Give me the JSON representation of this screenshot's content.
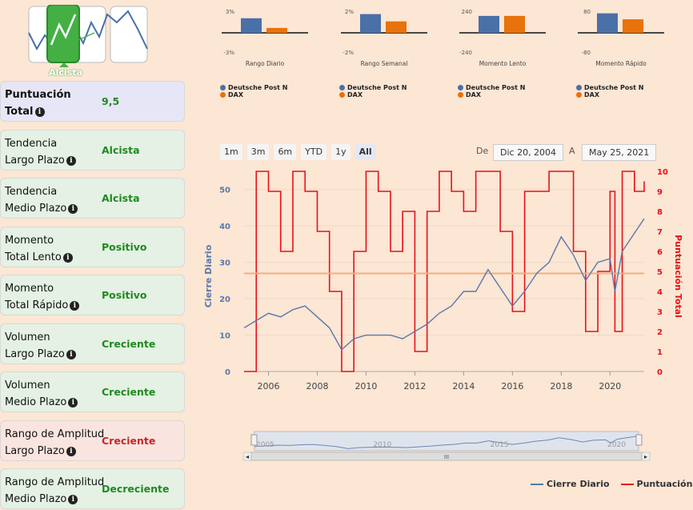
{
  "logo": {
    "label": "Alcista"
  },
  "cards": [
    {
      "label1": "Puntuación",
      "label2": "Total",
      "value": "9,5",
      "tone": "b"
    },
    {
      "label1": "Tendencia",
      "label2": "Largo Plazo",
      "value": "Alcista",
      "tone": "g"
    },
    {
      "label1": "Tendencia",
      "label2": "Medio Plazo",
      "value": "Alcista",
      "tone": "g"
    },
    {
      "label1": "Momento",
      "label2": "Total Lento",
      "value": "Positivo",
      "tone": "g"
    },
    {
      "label1": "Momento",
      "label2": "Total Rápido",
      "value": "Positivo",
      "tone": "g"
    },
    {
      "label1": "Volumen",
      "label2": "Largo Plazo",
      "value": "Creciente",
      "tone": "g"
    },
    {
      "label1": "Volumen",
      "label2": "Medio Plazo",
      "value": "Creciente",
      "tone": "g"
    },
    {
      "label1": "Rango de Amplitud",
      "label2": "Largo Plazo",
      "value": "Creciente",
      "tone": "r"
    },
    {
      "label1": "Rango de Amplitud",
      "label2": "Medio Plazo",
      "value": "Decreciente",
      "tone": "g"
    }
  ],
  "info_glyph": "i",
  "colors": {
    "series1": "#4a70a8",
    "series2": "#e8720c",
    "price": "#5a78aa",
    "score": "#e8111a",
    "avg": "#f0b080"
  },
  "chart_data": [
    {
      "type": "bar",
      "title": "Rango Diario",
      "ylim_labels": [
        "3%",
        "-3%"
      ],
      "ylim": [
        -3,
        3
      ],
      "categories": [
        "Deutsche Post N",
        "DAX"
      ],
      "values": [
        2.1,
        0.7
      ]
    },
    {
      "type": "bar",
      "title": "Rango Semanal",
      "ylim_labels": [
        "2%",
        "-2%"
      ],
      "ylim": [
        -2,
        2
      ],
      "categories": [
        "Deutsche Post N",
        "DAX"
      ],
      "values": [
        1.8,
        1.1
      ]
    },
    {
      "type": "bar",
      "title": "Momento Lento",
      "ylim_labels": [
        "240",
        "-240"
      ],
      "ylim": [
        -240,
        240
      ],
      "categories": [
        "Deutsche Post N",
        "DAX"
      ],
      "values": [
        195,
        195
      ]
    },
    {
      "type": "bar",
      "title": "Momento Rápido",
      "ylim_labels": [
        "80",
        "-80"
      ],
      "ylim": [
        -80,
        80
      ],
      "categories": [
        "Deutsche Post N",
        "DAX"
      ],
      "values": [
        75,
        52
      ]
    },
    {
      "type": "line",
      "xlabel": "",
      "ylabel": "Cierre Diario",
      "y2label": "Puntuación Total",
      "ylim": [
        0,
        55
      ],
      "y2lim": [
        0,
        10
      ],
      "x_ticks": [
        "2006",
        "2008",
        "2010",
        "2012",
        "2014",
        "2016",
        "2018",
        "2020"
      ],
      "y_ticks": [
        "0",
        "10",
        "20",
        "30",
        "40",
        "50"
      ],
      "y2_ticks": [
        "0",
        "1",
        "2",
        "3",
        "4",
        "5",
        "6",
        "7",
        "8",
        "9",
        "10"
      ],
      "avg_score": 4.9,
      "series": [
        {
          "name": "Cierre Diario",
          "x": [
            2005.0,
            2005.5,
            2006.0,
            2006.5,
            2007.0,
            2007.5,
            2008.0,
            2008.5,
            2009.0,
            2009.5,
            2010.0,
            2010.5,
            2011.0,
            2011.5,
            2012.0,
            2012.5,
            2013.0,
            2013.5,
            2014.0,
            2014.5,
            2015.0,
            2015.5,
            2016.0,
            2016.5,
            2017.0,
            2017.5,
            2018.0,
            2018.5,
            2019.0,
            2019.5,
            2020.0,
            2020.2,
            2020.5,
            2021.0,
            2021.4
          ],
          "values": [
            12,
            14,
            16,
            15,
            17,
            18,
            15,
            12,
            6,
            9,
            10,
            10,
            10,
            9,
            11,
            13,
            16,
            18,
            22,
            22,
            28,
            23,
            18,
            22,
            27,
            30,
            37,
            32,
            25,
            30,
            31,
            22,
            33,
            38,
            42
          ]
        },
        {
          "name": "Puntuación",
          "x": [
            2005.0,
            2005.5,
            2006.0,
            2006.5,
            2007.0,
            2007.5,
            2008.0,
            2008.5,
            2009.0,
            2009.5,
            2010.0,
            2010.5,
            2011.0,
            2011.5,
            2012.0,
            2012.5,
            2013.0,
            2013.5,
            2014.0,
            2014.5,
            2015.0,
            2015.5,
            2016.0,
            2016.5,
            2017.0,
            2017.5,
            2018.0,
            2018.5,
            2019.0,
            2019.5,
            2020.0,
            2020.2,
            2020.5,
            2021.0,
            2021.4
          ],
          "values": [
            0,
            10,
            9,
            6,
            10,
            9,
            7,
            4,
            0,
            6,
            10,
            9,
            6,
            8,
            1,
            8,
            10,
            9,
            8,
            10,
            10,
            7,
            3,
            9,
            9,
            10,
            10,
            6,
            2,
            5,
            9,
            2,
            10,
            9,
            9.5
          ]
        }
      ],
      "range_selector": {
        "buttons": [
          "1m",
          "3m",
          "6m",
          "YTD",
          "1y",
          "All"
        ],
        "active": "All",
        "from_label": "De",
        "from": "Dic 20, 2004",
        "to_label": "A",
        "to": "May 25, 2021"
      },
      "navigator_ticks": [
        "2005",
        "2010",
        "2015",
        "2020"
      ],
      "scroll_glyphs": {
        "left": "◂",
        "right": "▸",
        "center": "III"
      }
    }
  ],
  "legend": [
    "Cierre Diario",
    "Puntuación"
  ]
}
